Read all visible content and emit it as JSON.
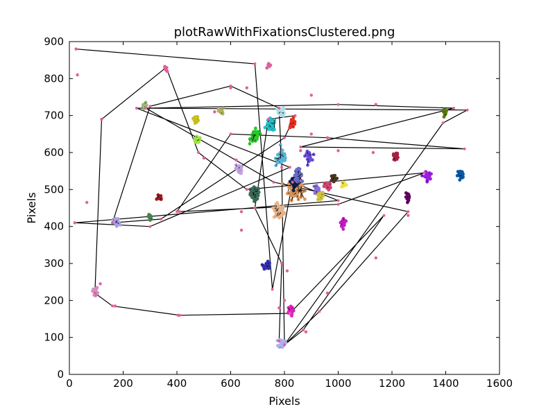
{
  "chart_data": {
    "type": "scatter",
    "title": "plotRawWithFixationsClustered.png",
    "xlabel": "Pixels",
    "ylabel": "Pixels",
    "xlim": [
      0,
      1600
    ],
    "ylim": [
      0,
      900
    ],
    "x_ticks": [
      "0",
      "200",
      "400",
      "600",
      "800",
      "1000",
      "1200",
      "1400",
      "1600"
    ],
    "y_ticks": [
      "0",
      "100",
      "200",
      "300",
      "400",
      "500",
      "600",
      "700",
      "800",
      "900"
    ],
    "grid": false,
    "legend": "none",
    "line_color": "#000000",
    "raw_point_color": "#e0609a",
    "scanpath": [
      [
        25,
        880
      ],
      [
        690,
        840
      ],
      [
        755,
        230
      ],
      [
        830,
        520
      ],
      [
        1000,
        470
      ],
      [
        20,
        410
      ],
      [
        300,
        400
      ],
      [
        820,
        560
      ],
      [
        250,
        720
      ],
      [
        1480,
        715
      ],
      [
        1390,
        680
      ],
      [
        800,
        80
      ],
      [
        930,
        170
      ],
      [
        1260,
        440
      ],
      [
        760,
        520
      ],
      [
        285,
        720
      ],
      [
        1000,
        730
      ],
      [
        1430,
        720
      ],
      [
        860,
        615
      ],
      [
        1470,
        610
      ],
      [
        960,
        640
      ],
      [
        600,
        650
      ],
      [
        400,
        440
      ],
      [
        1000,
        460
      ],
      [
        1320,
        545
      ],
      [
        660,
        500
      ],
      [
        480,
        600
      ],
      [
        360,
        830
      ],
      [
        120,
        690
      ],
      [
        95,
        220
      ],
      [
        160,
        185
      ],
      [
        410,
        160
      ],
      [
        820,
        165
      ],
      [
        1170,
        430
      ],
      [
        870,
        120
      ],
      [
        800,
        80
      ],
      [
        790,
        560
      ],
      [
        780,
        720
      ],
      [
        600,
        780
      ],
      [
        300,
        725
      ],
      [
        160,
        410
      ],
      [
        340,
        420
      ],
      [
        800,
        640
      ],
      [
        840,
        700
      ],
      [
        740,
        690
      ],
      [
        690,
        450
      ],
      [
        790,
        300
      ],
      [
        780,
        90
      ]
    ],
    "raw_points": [
      [
        25,
        880
      ],
      [
        30,
        810
      ],
      [
        20,
        410
      ],
      [
        65,
        465
      ],
      [
        120,
        690
      ],
      [
        115,
        245
      ],
      [
        170,
        185
      ],
      [
        405,
        160
      ],
      [
        600,
        775
      ],
      [
        660,
        775
      ],
      [
        900,
        755
      ],
      [
        1140,
        730
      ],
      [
        1130,
        600
      ],
      [
        960,
        640
      ],
      [
        1000,
        605
      ],
      [
        900,
        650
      ],
      [
        620,
        580
      ],
      [
        640,
        390
      ],
      [
        960,
        220
      ],
      [
        1140,
        315
      ],
      [
        1260,
        430
      ],
      [
        780,
        180
      ],
      [
        880,
        115
      ],
      [
        860,
        605
      ],
      [
        640,
        440
      ],
      [
        410,
        440
      ],
      [
        540,
        710
      ],
      [
        800,
        200
      ],
      [
        810,
        280
      ],
      [
        500,
        585
      ]
    ],
    "clusters": [
      {
        "color": "#3a6b55",
        "center": [
          690,
          490
        ],
        "spread": 14,
        "n": 70
      },
      {
        "color": "#e8b48a",
        "center": [
          780,
          440
        ],
        "spread": 16,
        "n": 80
      },
      {
        "color": "#d9965a",
        "center": [
          840,
          500
        ],
        "spread": 22,
        "n": 90
      },
      {
        "color": "#0b1e48",
        "center": [
          840,
          520
        ],
        "spread": 11,
        "n": 40
      },
      {
        "color": "#6a6cc8",
        "center": [
          850,
          540
        ],
        "spread": 12,
        "n": 40
      },
      {
        "color": "#5ab4d4",
        "center": [
          790,
          585
        ],
        "spread": 18,
        "n": 50
      },
      {
        "color": "#20c0c8",
        "center": [
          750,
          675
        ],
        "spread": 14,
        "n": 50
      },
      {
        "color": "#28c828",
        "center": [
          690,
          645
        ],
        "spread": 14,
        "n": 45
      },
      {
        "color": "#b0e0e8",
        "center": [
          790,
          710
        ],
        "spread": 10,
        "n": 25
      },
      {
        "color": "#e83020",
        "center": [
          830,
          680
        ],
        "spread": 10,
        "n": 25
      },
      {
        "color": "#6a4cd8",
        "center": [
          890,
          590
        ],
        "spread": 10,
        "n": 25
      },
      {
        "color": "#8a70e0",
        "center": [
          920,
          500
        ],
        "spread": 10,
        "n": 25
      },
      {
        "color": "#d0c040",
        "center": [
          930,
          480
        ],
        "spread": 10,
        "n": 25
      },
      {
        "color": "#d04878",
        "center": [
          960,
          510
        ],
        "spread": 10,
        "n": 25
      },
      {
        "color": "#4a3420",
        "center": [
          985,
          530
        ],
        "spread": 10,
        "n": 25
      },
      {
        "color": "#f0e040",
        "center": [
          1020,
          515
        ],
        "spread": 8,
        "n": 15
      },
      {
        "color": "#c020c0",
        "center": [
          1020,
          410
        ],
        "spread": 10,
        "n": 25
      },
      {
        "color": "#3030b0",
        "center": [
          735,
          295
        ],
        "spread": 10,
        "n": 25
      },
      {
        "color": "#b0b0f0",
        "center": [
          790,
          85
        ],
        "spread": 10,
        "n": 35
      },
      {
        "color": "#e020c0",
        "center": [
          820,
          170
        ],
        "spread": 10,
        "n": 30
      },
      {
        "color": "#c0a0e0",
        "center": [
          630,
          555
        ],
        "spread": 10,
        "n": 25
      },
      {
        "color": "#a0e040",
        "center": [
          475,
          635
        ],
        "spread": 8,
        "n": 20
      },
      {
        "color": "#c8c020",
        "center": [
          470,
          690
        ],
        "spread": 8,
        "n": 20
      },
      {
        "color": "#b0b060",
        "center": [
          565,
          710
        ],
        "spread": 8,
        "n": 15
      },
      {
        "color": "#a0b878",
        "center": [
          280,
          725
        ],
        "spread": 8,
        "n": 15
      },
      {
        "color": "#a8a0e0",
        "center": [
          175,
          410
        ],
        "spread": 10,
        "n": 25
      },
      {
        "color": "#4a8050",
        "center": [
          300,
          425
        ],
        "spread": 8,
        "n": 15
      },
      {
        "color": "#a01820",
        "center": [
          335,
          480
        ],
        "spread": 8,
        "n": 15
      },
      {
        "color": "#d090c0",
        "center": [
          95,
          225
        ],
        "spread": 8,
        "n": 20
      },
      {
        "color": "#a82040",
        "center": [
          1215,
          590
        ],
        "spread": 8,
        "n": 20
      },
      {
        "color": "#9a20e0",
        "center": [
          1330,
          535
        ],
        "spread": 10,
        "n": 35
      },
      {
        "color": "#600060",
        "center": [
          1260,
          480
        ],
        "spread": 8,
        "n": 20
      },
      {
        "color": "#0858a8",
        "center": [
          1455,
          540
        ],
        "spread": 9,
        "n": 25
      },
      {
        "color": "#5a7a10",
        "center": [
          1400,
          710
        ],
        "spread": 8,
        "n": 15
      },
      {
        "color": "#e060a0",
        "center": [
          360,
          825
        ],
        "spread": 6,
        "n": 10
      },
      {
        "color": "#e060a0",
        "center": [
          745,
          835
        ],
        "spread": 6,
        "n": 10
      }
    ]
  }
}
